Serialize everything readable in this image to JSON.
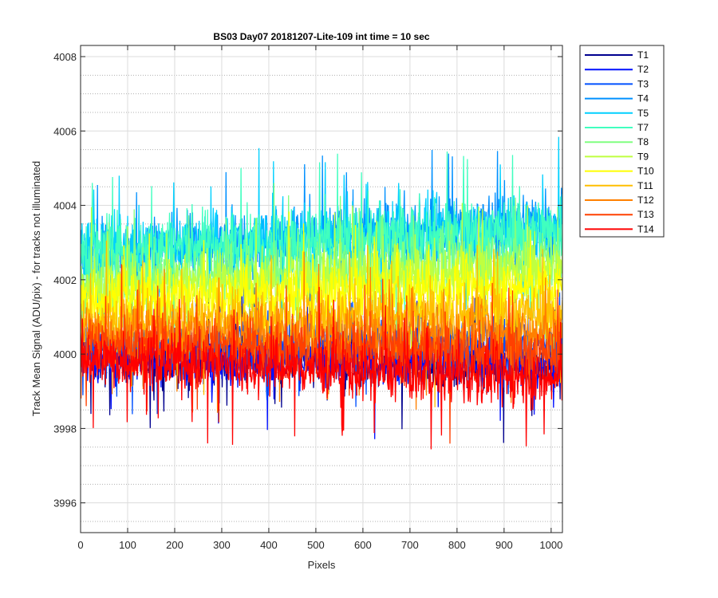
{
  "chart_data": {
    "type": "line",
    "title": "BS03 Day07 20181207-Lite-109 int time = 10 sec",
    "xlabel": "Pixels",
    "ylabel": "Track Mean Signal (ADU/pix) - for tracks not illuminated",
    "xlim": [
      0,
      1024
    ],
    "ylim": [
      3995.2,
      4008.3
    ],
    "x_ticks": [
      0,
      100,
      200,
      300,
      400,
      500,
      600,
      700,
      800,
      900,
      1000
    ],
    "x_tick_labels": [
      "0",
      "100",
      "200",
      "300",
      "400",
      "500",
      "600",
      "700",
      "800",
      "900",
      "1000"
    ],
    "y_ticks": [
      3996,
      3998,
      4000,
      4002,
      4004,
      4006,
      4008
    ],
    "y_tick_labels": [
      "3996",
      "3998",
      "4000",
      "4002",
      "4004",
      "4006",
      "4008"
    ],
    "y_minor_ticks": [
      3995.5,
      3996.5,
      3997,
      3997.5,
      3998.5,
      3999,
      3999.5,
      4000.5,
      4001,
      4001.5,
      4002.5,
      4003,
      4003.5,
      4004.5,
      4005,
      4005.5,
      4006.5,
      4007,
      4007.5
    ],
    "grid": true,
    "minor_grid_y": true,
    "legend_position": "outside-top-right",
    "series": [
      {
        "name": "T1",
        "color": "#00008f",
        "x_start": 0,
        "x_end": 1024,
        "mean_start": 3999.9,
        "mean_end": 3999.7,
        "noise": 0.65
      },
      {
        "name": "T2",
        "color": "#0010ff",
        "x_start": 0,
        "x_end": 1024,
        "mean_start": 3999.9,
        "mean_end": 3999.8,
        "noise": 0.6
      },
      {
        "name": "T3",
        "color": "#0050ff",
        "x_start": 0,
        "x_end": 1024,
        "mean_start": 4000.2,
        "mean_end": 4000.4,
        "noise": 0.6
      },
      {
        "name": "T4",
        "color": "#0090ff",
        "x_start": 0,
        "x_end": 1024,
        "mean_start": 4002.7,
        "mean_end": 4003.6,
        "noise": 0.8
      },
      {
        "name": "T5",
        "color": "#00d0ff",
        "x_start": 0,
        "x_end": 1024,
        "mean_start": 4002.8,
        "mean_end": 4003.4,
        "noise": 0.8
      },
      {
        "name": "T7",
        "color": "#40ffbf",
        "x_start": 0,
        "x_end": 1024,
        "mean_start": 4002.8,
        "mean_end": 4003.3,
        "noise": 0.85
      },
      {
        "name": "T8",
        "color": "#80ff80",
        "x_start": 0,
        "x_end": 1024,
        "mean_start": 4002.0,
        "mean_end": 4002.6,
        "noise": 0.75
      },
      {
        "name": "T9",
        "color": "#bfff40",
        "x_start": 0,
        "x_end": 1024,
        "mean_start": 4001.8,
        "mean_end": 4002.3,
        "noise": 0.7
      },
      {
        "name": "T10",
        "color": "#ffff00",
        "x_start": 0,
        "x_end": 1024,
        "mean_start": 4001.5,
        "mean_end": 4001.8,
        "noise": 0.7
      },
      {
        "name": "T11",
        "color": "#ffbf00",
        "x_start": 0,
        "x_end": 1024,
        "mean_start": 4000.9,
        "mean_end": 4001.1,
        "noise": 0.7
      },
      {
        "name": "T12",
        "color": "#ff8000",
        "x_start": 0,
        "x_end": 1024,
        "mean_start": 4000.6,
        "mean_end": 4000.5,
        "noise": 0.7
      },
      {
        "name": "T13",
        "color": "#ff4000",
        "x_start": 0,
        "x_end": 1024,
        "mean_start": 4000.3,
        "mean_end": 4000.0,
        "noise": 0.7
      },
      {
        "name": "T14",
        "color": "#ff0000",
        "x_start": 0,
        "x_end": 1024,
        "mean_start": 3999.9,
        "mean_end": 3999.3,
        "noise": 0.7
      }
    ]
  }
}
